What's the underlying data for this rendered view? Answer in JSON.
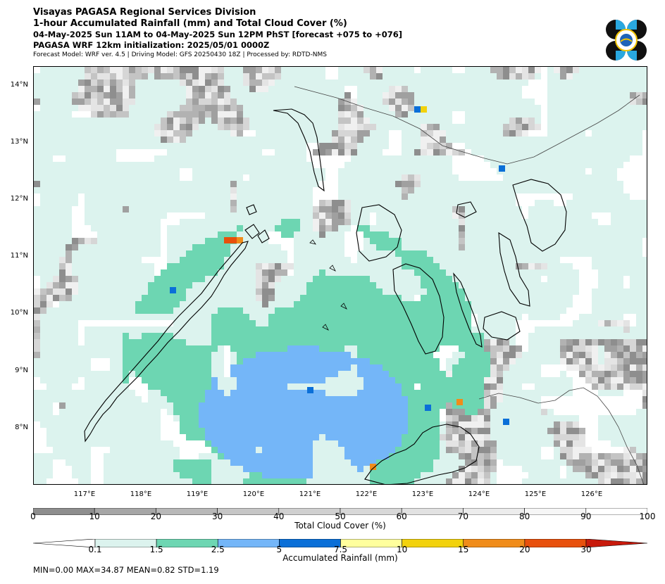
{
  "header": {
    "line1": "Visayas PAGASA Regional Services Division",
    "line2": "1-hour Accumulated Rainfall (mm) and Total Cloud Cover (%)",
    "line3": "04-May-2025 Sun 11AM to 04-May-2025 Sun 12PM PhST [forecast +075 to +076]",
    "line4": "PAGASA WRF 12km initialization: 2025/05/01 0000Z",
    "line5": "Forecast Model: WRF ver. 4.5 | Driving Model: GFS 20250430 18Z | Processed by: RDTD-NMS"
  },
  "map": {
    "lat_labels": [
      "14°N",
      "13°N",
      "12°N",
      "11°N",
      "10°N",
      "9°N",
      "8°N"
    ],
    "lon_labels": [
      "117°E",
      "118°E",
      "119°E",
      "120°E",
      "121°E",
      "122°E",
      "123°E",
      "124°E",
      "125°E",
      "126°E"
    ],
    "cloud_colors": [
      "#8e8e8e",
      "#a0a0a0",
      "#b2b2b2",
      "#c4c4c4",
      "#d6d6d6",
      "#e4e4e4",
      "#f0f0f0"
    ],
    "rain_colors": {
      "light": "#dcf3ee",
      "moderate": "#6dd6b2",
      "heavy": "#74b6f8",
      "intense": "#0a6fd8",
      "yellow": "#ffff9d",
      "gold": "#f2d20c",
      "orange": "#f08c1a",
      "red": "#e8500c"
    }
  },
  "cloud_colorbar": {
    "label": "Total Cloud Cover (%)",
    "ticks": [
      "0",
      "10",
      "20",
      "30",
      "40",
      "50",
      "60",
      "70",
      "80",
      "90",
      "100"
    ],
    "colors": [
      "#8e8e8e",
      "#a6a6a6",
      "#b8b8b8",
      "#c6c6c6",
      "#d0d0d0",
      "#d8d8d8",
      "#e2e2e2",
      "#ececec",
      "#f6f6f6",
      "#ffffff"
    ]
  },
  "rain_colorbar": {
    "label": "Accumulated Rainfall (mm)",
    "ticks": [
      "0.1",
      "1.5",
      "2.5",
      "5",
      "7.5",
      "10",
      "15",
      "20",
      "30"
    ],
    "colors": [
      "#ffffff",
      "#dcf3ee",
      "#6dd6b2",
      "#74b6f8",
      "#0a6fd8",
      "#ffff9d",
      "#f2d20c",
      "#f08c1a",
      "#e8500c",
      "#c81a0c"
    ]
  },
  "stats": {
    "text": "MIN=0.00   MAX=34.87   MEAN=0.82   STD=1.19"
  }
}
